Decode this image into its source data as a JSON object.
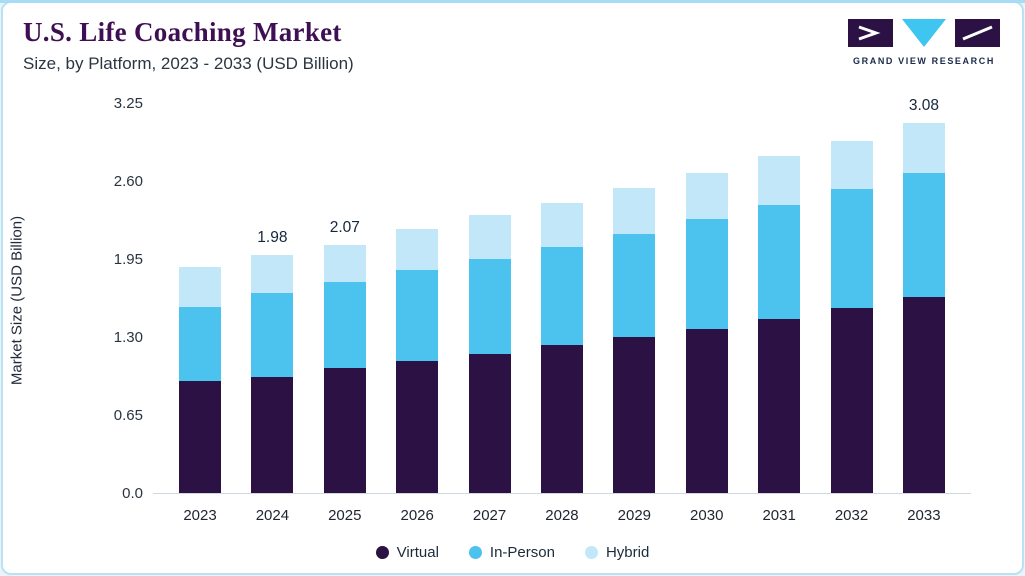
{
  "header": {
    "title": "U.S. Life Coaching Market",
    "subtitle": "Size, by Platform, 2023 - 2033 (USD Billion)",
    "brand": "GRAND VIEW RESEARCH"
  },
  "theme": {
    "title_color": "#3e1053",
    "accent_line": "#a6dcf4",
    "card_border": "#b9e2f5",
    "axis_text": "#2a3440"
  },
  "chart_data": {
    "type": "bar",
    "stacked": true,
    "title": "U.S. Life Coaching Market",
    "subtitle": "Size, by Platform, 2023 - 2033 (USD Billion)",
    "xlabel": "",
    "ylabel": "Market Size (USD Billion)",
    "categories": [
      "2023",
      "2024",
      "2025",
      "2026",
      "2027",
      "2028",
      "2029",
      "2030",
      "2031",
      "2032",
      "2033"
    ],
    "series": [
      {
        "name": "Virtual",
        "color": "#2b1144",
        "values": [
          0.93,
          0.97,
          1.04,
          1.1,
          1.16,
          1.23,
          1.3,
          1.37,
          1.45,
          1.54,
          1.63
        ]
      },
      {
        "name": "In-Person",
        "color": "#4cc2ee",
        "values": [
          0.62,
          0.7,
          0.72,
          0.76,
          0.79,
          0.82,
          0.86,
          0.91,
          0.95,
          0.99,
          1.04
        ]
      },
      {
        "name": "Hybrid",
        "color": "#c2e7f9",
        "values": [
          0.33,
          0.31,
          0.31,
          0.34,
          0.37,
          0.37,
          0.38,
          0.39,
          0.41,
          0.4,
          0.41
        ]
      }
    ],
    "totals": [
      1.88,
      1.98,
      2.07,
      2.2,
      2.32,
      2.42,
      2.54,
      2.67,
      2.81,
      2.93,
      3.08
    ],
    "bar_labels": {
      "2024": "1.98",
      "2025": "2.07",
      "2033": "3.08"
    },
    "yticks": [
      0.0,
      0.65,
      1.3,
      1.95,
      2.6,
      3.25
    ],
    "ytick_labels": [
      "0.0",
      "0.65",
      "1.30",
      "1.95",
      "2.60",
      "3.25"
    ],
    "ylim": [
      0,
      3.25
    ],
    "grid": false,
    "legend_position": "bottom"
  }
}
